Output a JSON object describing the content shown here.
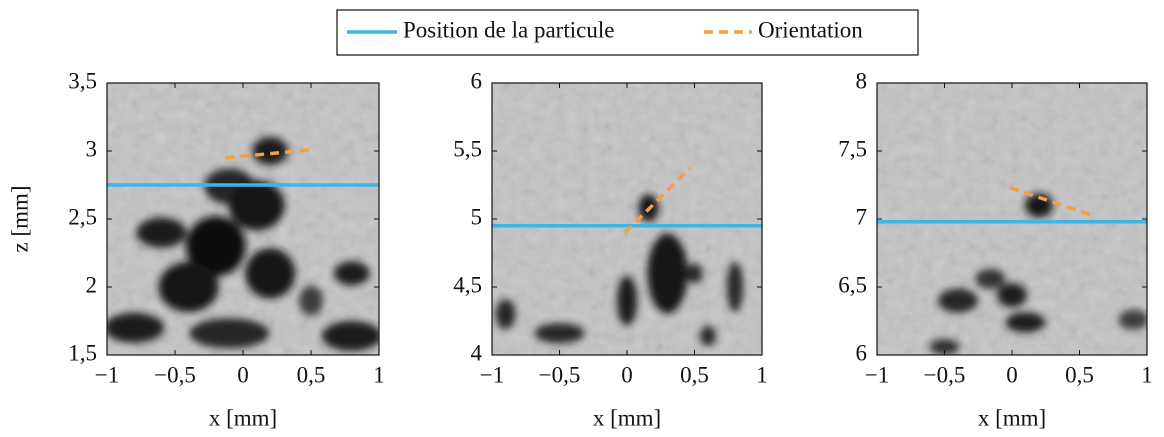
{
  "chart_data": [
    {
      "type": "line",
      "x_label": "x [mm]",
      "y_label": "z [mm]",
      "xlim": [
        -1,
        1
      ],
      "ylim": [
        1.5,
        3.5
      ],
      "xticks": [
        {
          "value": -1,
          "label": "−1"
        },
        {
          "value": -0.5,
          "label": "−0,5"
        },
        0,
        {
          "value": 0.5,
          "label": "0,5"
        },
        1
      ],
      "yticks": [
        {
          "value": 1.5,
          "label": "1,5"
        },
        2,
        {
          "value": 2.5,
          "label": "2,5"
        },
        3,
        {
          "value": 3.5,
          "label": "3,5"
        }
      ],
      "series": [
        {
          "name": "Position de la particule",
          "color": "#3db5e6",
          "dash": false,
          "x": [
            -1,
            1
          ],
          "values": [
            2.75,
            2.75
          ]
        },
        {
          "name": "Orientation",
          "color": "#f4a040",
          "dash": true,
          "x": [
            -0.13,
            0.515
          ],
          "values": [
            2.95,
            3.01
          ]
        }
      ]
    },
    {
      "type": "line",
      "x_label": "x [mm]",
      "xlim": [
        -1,
        1
      ],
      "ylim": [
        4,
        6
      ],
      "xticks": [
        {
          "value": -1,
          "label": "−1"
        },
        {
          "value": -0.5,
          "label": "−0,5"
        },
        0,
        {
          "value": 0.5,
          "label": "0,5"
        },
        1
      ],
      "yticks": [
        4,
        {
          "value": 4.5,
          "label": "4,5"
        },
        5,
        {
          "value": 5.5,
          "label": "5,5"
        },
        6
      ],
      "series": [
        {
          "color": "#3db5e6",
          "dash": false,
          "x": [
            -1,
            1
          ],
          "values": [
            4.95,
            4.95
          ]
        },
        {
          "color": "#f4a040",
          "dash": true,
          "x": [
            -0.015,
            0.467
          ],
          "values": [
            4.9,
            5.375
          ]
        }
      ]
    },
    {
      "type": "line",
      "x_label": "x [mm]",
      "xlim": [
        -1,
        1
      ],
      "ylim": [
        6,
        8
      ],
      "xticks": [
        {
          "value": -1,
          "label": "−1"
        },
        {
          "value": -0.5,
          "label": "−0,5"
        },
        0,
        {
          "value": 0.5,
          "label": "0,5"
        },
        1
      ],
      "yticks": [
        6,
        {
          "value": 6.5,
          "label": "6,5"
        },
        7,
        {
          "value": 7.5,
          "label": "7,5"
        },
        8
      ],
      "series": [
        {
          "color": "#3db5e6",
          "dash": false,
          "x": [
            -1,
            1
          ],
          "values": [
            6.98,
            6.98
          ]
        },
        {
          "color": "#f4a040",
          "dash": true,
          "x": [
            -0.015,
            0.615
          ],
          "values": [
            7.23,
            7.02
          ]
        }
      ]
    }
  ]
}
